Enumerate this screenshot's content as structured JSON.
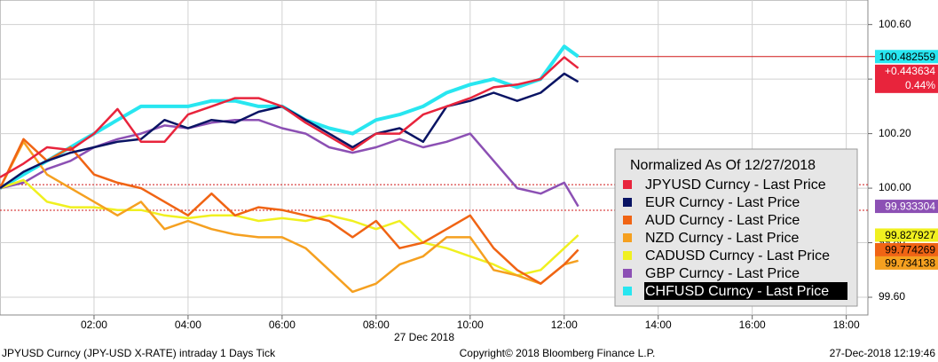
{
  "chart_data": {
    "type": "line",
    "legend_title": "Normalized As Of 12/27/2018",
    "x_label": "27 Dec 2018",
    "footer_left": "JPYUSD Curncy (JPY-USD X-RATE) intraday 1 Days  Tick",
    "footer_center": "Copyright© 2018 Bloomberg Finance L.P.",
    "footer_right": "27-Dec-2018 12:19:46",
    "x": [
      0,
      0.5,
      1,
      1.5,
      2,
      2.5,
      3,
      3.5,
      4,
      4.5,
      5,
      5.5,
      6,
      6.5,
      7,
      7.5,
      8,
      8.5,
      9,
      9.5,
      10,
      10.5,
      11,
      11.5,
      12,
      12.3
    ],
    "xlim": [
      0,
      18.46
    ],
    "xticks": [
      {
        "value": 2,
        "label": "02:00"
      },
      {
        "value": 4,
        "label": "04:00"
      },
      {
        "value": 6,
        "label": "06:00"
      },
      {
        "value": 8,
        "label": "08:00"
      },
      {
        "value": 10,
        "label": "10:00"
      },
      {
        "value": 12,
        "label": "12:00"
      },
      {
        "value": 14,
        "label": "14:00"
      },
      {
        "value": 16,
        "label": "16:00"
      },
      {
        "value": 18,
        "label": "18:00"
      }
    ],
    "ylim": [
      99.535,
      100.69
    ],
    "yticks": [
      {
        "value": 100.6,
        "label": "100.60"
      },
      {
        "value": 100.4,
        "label": "100.40"
      },
      {
        "value": 100.2,
        "label": "100.20"
      },
      {
        "value": 100,
        "label": "100.00"
      },
      {
        "value": 99.8,
        "label": "99.80"
      },
      {
        "value": 99.6,
        "label": "99.60"
      }
    ],
    "grid": true,
    "reference_lines": [
      100.013,
      99.919
    ],
    "series": [
      {
        "name": "JPYUSD Curncy - Last Price",
        "color": "#e8243c",
        "change": "+0.443634",
        "change_pct": "0.44%",
        "values": [
          100.04,
          100.09,
          100.15,
          100.14,
          100.2,
          100.29,
          100.17,
          100.17,
          100.27,
          100.3,
          100.33,
          100.33,
          100.3,
          100.24,
          100.19,
          100.14,
          100.2,
          100.2,
          100.27,
          100.3,
          100.33,
          100.37,
          100.38,
          100.4,
          100.48,
          100.44
        ]
      },
      {
        "name": "EUR Curncy - Last Price",
        "color": "#0a1464",
        "values": [
          100.0,
          100.06,
          100.1,
          100.13,
          100.15,
          100.17,
          100.18,
          100.25,
          100.22,
          100.25,
          100.24,
          100.28,
          100.3,
          100.25,
          100.2,
          100.15,
          100.2,
          100.22,
          100.17,
          100.3,
          100.32,
          100.35,
          100.32,
          100.35,
          100.42,
          100.39
        ]
      },
      {
        "name": "AUD Curncy - Last Price",
        "color": "#f06414",
        "last_label": "99.774269",
        "values": [
          100.0,
          100.18,
          100.1,
          100.15,
          100.05,
          100.02,
          100.0,
          99.95,
          99.9,
          99.98,
          99.9,
          99.93,
          99.92,
          99.9,
          99.88,
          99.82,
          99.88,
          99.78,
          99.8,
          99.85,
          99.9,
          99.78,
          99.7,
          99.65,
          99.72,
          99.774269
        ]
      },
      {
        "name": "NZD Curncy - Last Price",
        "color": "#f5a020",
        "last_label": "99.734138",
        "values": [
          100.0,
          100.17,
          100.05,
          100.0,
          99.95,
          99.9,
          99.95,
          99.85,
          99.88,
          99.85,
          99.83,
          99.82,
          99.82,
          99.78,
          99.7,
          99.62,
          99.65,
          99.72,
          99.75,
          99.82,
          99.82,
          99.7,
          99.68,
          99.65,
          99.72,
          99.734138
        ]
      },
      {
        "name": "CADUSD Curncy - Last Price",
        "color": "#f0f020",
        "last_label": "99.827927",
        "values": [
          100.0,
          100.03,
          99.95,
          99.93,
          99.93,
          99.92,
          99.92,
          99.9,
          99.89,
          99.9,
          99.9,
          99.88,
          99.89,
          99.88,
          99.9,
          99.88,
          99.85,
          99.88,
          99.8,
          99.78,
          99.75,
          99.72,
          99.68,
          99.7,
          99.78,
          99.827927
        ]
      },
      {
        "name": "GBP Curncy - Last Price",
        "color": "#8c50b4",
        "last_label": "99.933304",
        "values": [
          100.0,
          100.02,
          100.07,
          100.1,
          100.15,
          100.18,
          100.2,
          100.23,
          100.22,
          100.24,
          100.25,
          100.25,
          100.22,
          100.2,
          100.15,
          100.13,
          100.15,
          100.18,
          100.15,
          100.17,
          100.2,
          100.1,
          100.0,
          99.98,
          100.02,
          99.933304
        ]
      },
      {
        "name": "CHFUSD Curncy - Last Price",
        "color": "#28e6f0",
        "last_label": "100.482559",
        "values": [
          100.0,
          100.05,
          100.1,
          100.15,
          100.2,
          100.25,
          100.3,
          100.3,
          100.3,
          100.32,
          100.32,
          100.3,
          100.3,
          100.25,
          100.22,
          100.2,
          100.25,
          100.27,
          100.3,
          100.35,
          100.38,
          100.4,
          100.37,
          100.4,
          100.52,
          100.482559
        ]
      }
    ]
  }
}
